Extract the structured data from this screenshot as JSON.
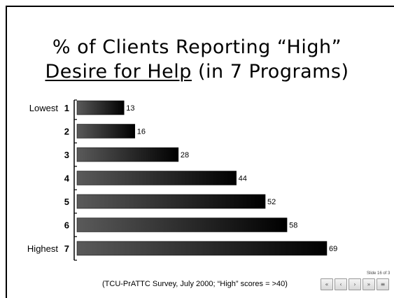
{
  "slide": {
    "title_line1": "% of Clients Reporting “High”",
    "title_line2_underlined": "Desire for Help",
    "title_line2_rest": " (in 7 Programs)",
    "footnote": "(TCU-PrATTC Survey, July 2000; “High” scores = >40)",
    "slide_counter": "Slide 16 of 3"
  },
  "nav": [
    {
      "name": "first-slide-button",
      "icon": "«"
    },
    {
      "name": "previous-slide-button",
      "icon": "‹"
    },
    {
      "name": "next-slide-button",
      "icon": "›"
    },
    {
      "name": "last-slide-button",
      "icon": "»"
    },
    {
      "name": "slide-menu-button",
      "icon": "≡"
    }
  ],
  "chart_data": {
    "type": "bar",
    "orientation": "horizontal",
    "categories": [
      "1",
      "2",
      "3",
      "4",
      "5",
      "6",
      "7"
    ],
    "values": [
      13,
      16,
      28,
      44,
      52,
      58,
      69
    ],
    "category_annotations": {
      "first": "Lowest",
      "last": "Highest"
    },
    "xlim": [
      0,
      69
    ],
    "grid": false,
    "legend": "none",
    "colors": {
      "bar_light": "#5a5a5a",
      "bar_dark": "#000000",
      "axis": "#000000"
    }
  }
}
